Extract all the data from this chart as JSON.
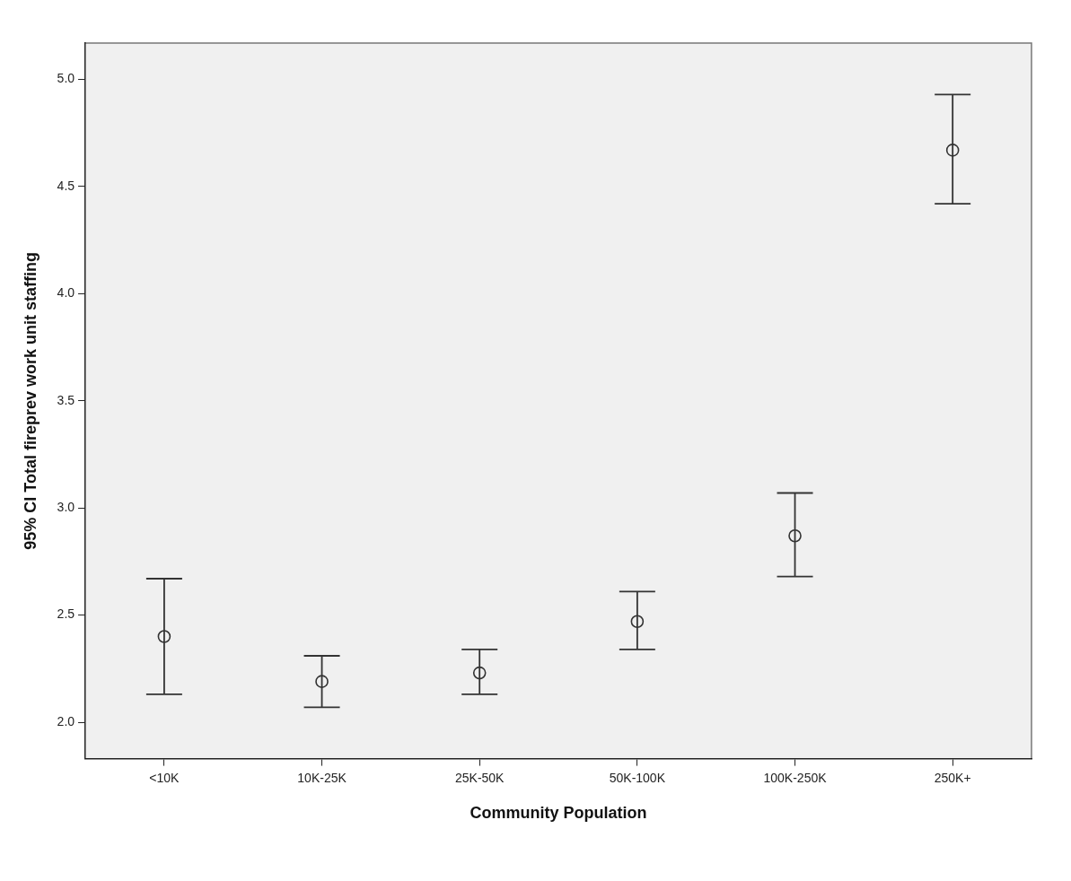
{
  "chart_data": {
    "type": "scatter",
    "xlabel": "Community Population",
    "ylabel": "95% CI Total fireprev work unit staffing",
    "categories": [
      "<10K",
      "10K-25K",
      "25K-50K",
      "50K-100K",
      "100K-250K",
      "250K+"
    ],
    "values": [
      2.4,
      2.19,
      2.23,
      2.47,
      2.87,
      4.67
    ],
    "errors": [
      [
        2.13,
        2.67
      ],
      [
        2.07,
        2.31
      ],
      [
        2.13,
        2.34
      ],
      [
        2.34,
        2.61
      ],
      [
        2.68,
        3.07
      ],
      [
        4.42,
        4.93
      ]
    ],
    "color": "#333333",
    "marker": "circle",
    "grid": false,
    "legend": false,
    "ylim": [
      1.83,
      5.17
    ],
    "yticks": [
      {
        "value": 2,
        "label": "2.0"
      },
      {
        "value": 2.5,
        "label": "2.5"
      },
      {
        "value": 3,
        "label": "3.0"
      },
      {
        "value": 3.5,
        "label": "3.5"
      },
      {
        "value": 4,
        "label": "4.0"
      },
      {
        "value": 4.5,
        "label": "4.5"
      },
      {
        "value": 5,
        "label": "5.0"
      }
    ]
  }
}
